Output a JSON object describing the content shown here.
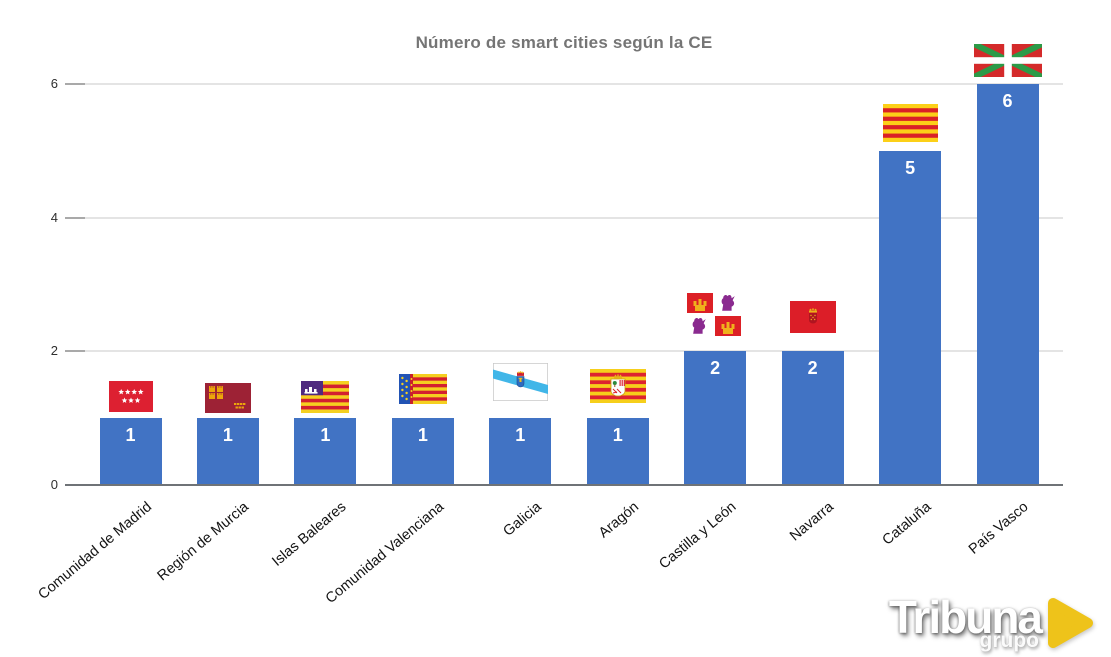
{
  "chart_data": {
    "type": "bar",
    "title": "Número de smart cities según la CE",
    "categories": [
      "Comunidad de Madrid",
      "Región de Murcia",
      "Islas Baleares",
      "Comunidad Valenciana",
      "Galicia",
      "Aragón",
      "Castilla y León",
      "Navarra",
      "Cataluña",
      "País Vasco"
    ],
    "values": [
      1,
      1,
      1,
      1,
      1,
      1,
      2,
      2,
      5,
      6
    ],
    "flags": [
      "flag-madrid",
      "flag-murcia",
      "flag-baleares",
      "flag-valenciana",
      "flag-galicia",
      "flag-aragon",
      "flag-castilla-leon",
      "flag-navarra",
      "flag-cataluna",
      "flag-pais-vasco"
    ],
    "yticks": [
      0,
      2,
      4,
      6
    ],
    "ylim": [
      0,
      6.3
    ],
    "xlabel": "",
    "ylabel": "",
    "grid": true,
    "legend": "none",
    "bar_color": "#4173c4",
    "value_label_color": "#ffffff"
  },
  "branding": {
    "logo_text": "Tribuna",
    "logo_subtext": "grupo",
    "logo_accent_color": "#eec31a"
  }
}
